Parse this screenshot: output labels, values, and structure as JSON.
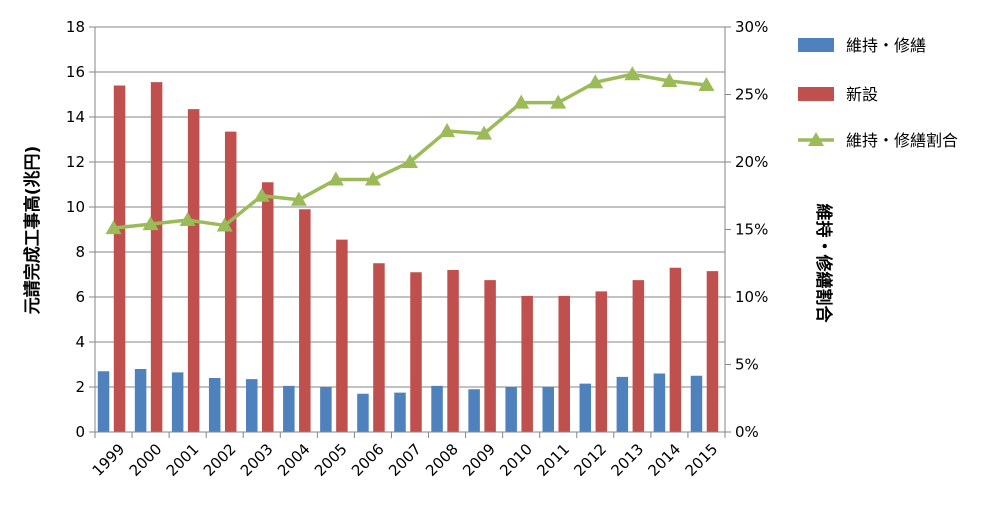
{
  "chart_data": {
    "type": "bar",
    "categories": [
      "1999",
      "2000",
      "2001",
      "2002",
      "2003",
      "2004",
      "2005",
      "2006",
      "2007",
      "2008",
      "2009",
      "2010",
      "2011",
      "2012",
      "2013",
      "2014",
      "2015"
    ],
    "ylabel": "元請完成工事高(兆円)",
    "y2label": "維持・修繕割合",
    "ylim": [
      0,
      18
    ],
    "y_ticks": [
      "0",
      "2",
      "4",
      "6",
      "8",
      "10",
      "12",
      "14",
      "16",
      "18"
    ],
    "y2lim": [
      0,
      30
    ],
    "y2_ticks": [
      "0%",
      "5%",
      "10%",
      "15%",
      "20%",
      "25%",
      "30%"
    ],
    "grid": true,
    "legend_position": "right",
    "series": [
      {
        "name": "維持・修繕",
        "type": "bar",
        "color": "#4F81BD",
        "values": [
          2.7,
          2.8,
          2.65,
          2.4,
          2.35,
          2.05,
          2.0,
          1.7,
          1.75,
          2.05,
          1.9,
          2.0,
          2.0,
          2.15,
          2.45,
          2.6,
          2.5
        ]
      },
      {
        "name": "新設",
        "type": "bar",
        "color": "#C0504D",
        "values": [
          15.4,
          15.55,
          14.35,
          13.35,
          11.1,
          9.9,
          8.55,
          7.5,
          7.1,
          7.2,
          6.75,
          6.05,
          6.05,
          6.25,
          6.75,
          7.3,
          7.15
        ]
      },
      {
        "name": "維持・修繕割合",
        "type": "line",
        "axis": "right",
        "color": "#9BBB59",
        "values": [
          15.1,
          15.4,
          15.7,
          15.3,
          17.5,
          17.2,
          18.7,
          18.7,
          20.0,
          22.3,
          22.1,
          24.4,
          24.4,
          25.9,
          26.5,
          26.0,
          25.7
        ]
      }
    ]
  }
}
